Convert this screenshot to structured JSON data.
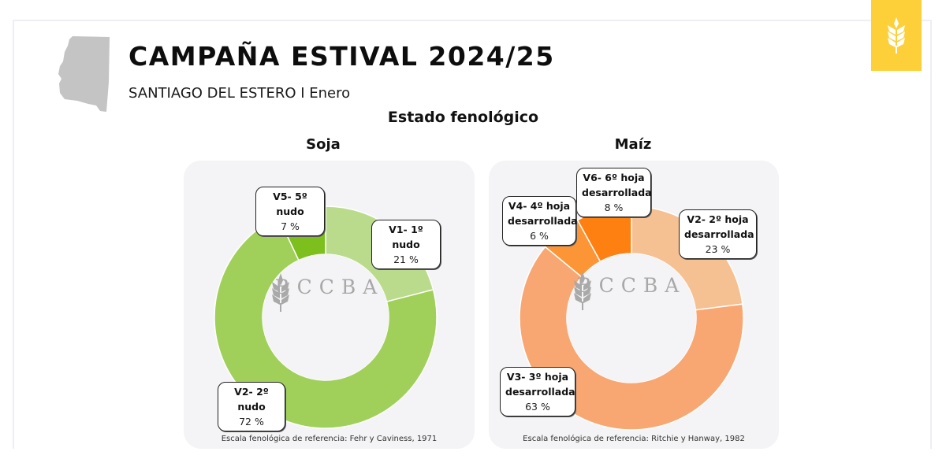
{
  "header": {
    "title": "CAMPAÑA ESTIVAL 2024/25",
    "subtitle": "SANTIAGO DEL ESTERO I Enero",
    "province_icon": "santiago-del-estero-map-icon",
    "badge_icon": "wheat-icon",
    "badge_color": "#fdd03a"
  },
  "section": {
    "title": "Estado fenológico"
  },
  "logo": {
    "text": "BCCBA",
    "icon": "wheat-icon"
  },
  "charts": {
    "soja": {
      "title": "Soja",
      "footnote": "Escala fenológica de referencia: Fehr y Caviness, 1971",
      "slices": [
        {
          "label": "V1- 1º nudo",
          "value": 21,
          "display": "21 %",
          "color": "#badb8c"
        },
        {
          "label": "V2- 2º nudo",
          "value": 72,
          "display": "72 %",
          "color": "#a0d05a"
        },
        {
          "label": "V5- 5º nudo",
          "value": 7,
          "display": "7 %",
          "color": "#7dbf1d"
        }
      ]
    },
    "maiz": {
      "title": "Maíz",
      "footnote": "Escala fenológica de referencia: Ritchie y Hanway, 1982",
      "slices": [
        {
          "label": "V2- 2º hoja desarrollada",
          "label_l1": "V2- 2º hoja",
          "label_l2": "desarrollada",
          "value": 23,
          "display": "23 %",
          "color": "#f6c192"
        },
        {
          "label": "V3- 3º hoja desarrollada",
          "label_l1": "V3- 3º hoja",
          "label_l2": "desarrollada",
          "value": 63,
          "display": "63 %",
          "color": "#f8a672"
        },
        {
          "label": "V4- 4º hoja desarrollada",
          "label_l1": "V4- 4º hoja",
          "label_l2": "desarrollada",
          "value": 6,
          "display": "6 %",
          "color": "#fb9535"
        },
        {
          "label": "V6- 6º hoja desarrollada",
          "label_l1": "V6- 6º hoja",
          "label_l2": "desarrollada",
          "value": 8,
          "display": "8 %",
          "color": "#fd8011"
        }
      ]
    }
  },
  "chart_data": [
    {
      "type": "pie",
      "title": "Soja",
      "subtitle": "Estado fenológico",
      "categories": [
        "V1- 1º nudo",
        "V2- 2º nudo",
        "V5- 5º nudo"
      ],
      "values": [
        21,
        72,
        7
      ],
      "unit": "%",
      "donut": true,
      "note": "Escala fenológica de referencia: Fehr y Caviness, 1971"
    },
    {
      "type": "pie",
      "title": "Maíz",
      "subtitle": "Estado fenológico",
      "categories": [
        "V2- 2º hoja desarrollada",
        "V3- 3º hoja desarrollada",
        "V4- 4º hoja desarrollada",
        "V6- 6º hoja desarrollada"
      ],
      "values": [
        23,
        63,
        6,
        8
      ],
      "unit": "%",
      "donut": true,
      "note": "Escala fenológica de referencia: Ritchie y Hanway, 1982"
    }
  ]
}
